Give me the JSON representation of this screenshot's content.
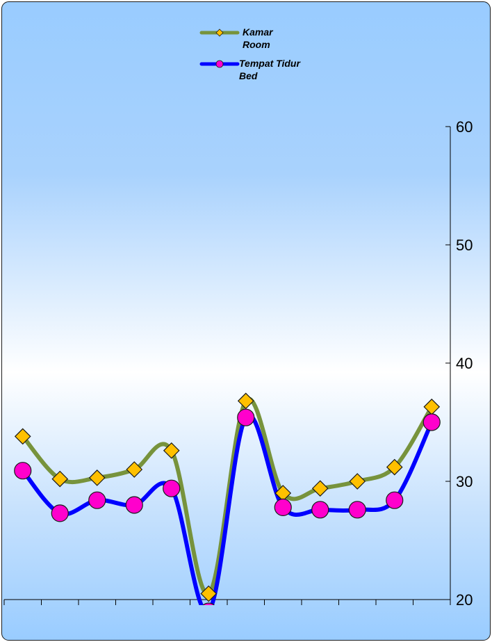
{
  "chart_data": {
    "type": "line",
    "title": "",
    "xlabel": "",
    "ylabel": "",
    "ylim": [
      20,
      60
    ],
    "yticks": [
      20,
      30,
      40,
      50,
      60
    ],
    "y_axis_position": "right",
    "grid": false,
    "legend_position": "top-center",
    "smooth": true,
    "x": [
      1,
      2,
      3,
      4,
      5,
      6,
      7,
      8,
      9,
      10,
      11,
      12
    ],
    "series": [
      {
        "name": "Kamar\nRoom",
        "label_lines": [
          "Kamar",
          "Room"
        ],
        "line_color": "#77933c",
        "marker": "diamond",
        "marker_color": "#ffc000",
        "values": [
          33.8,
          30.2,
          30.3,
          31.0,
          32.6,
          20.5,
          36.8,
          29.0,
          29.4,
          30.0,
          31.2,
          36.3
        ]
      },
      {
        "name": "Tempat Tidur\nBed",
        "label_lines": [
          "Tempat Tidur",
          "Bed"
        ],
        "line_color": "#0000ff",
        "marker": "circle",
        "marker_color": "#ff00cc",
        "values": [
          30.9,
          27.3,
          28.4,
          28.0,
          29.4,
          19.0,
          35.4,
          27.8,
          27.6,
          27.6,
          28.4,
          35.0
        ]
      }
    ]
  }
}
